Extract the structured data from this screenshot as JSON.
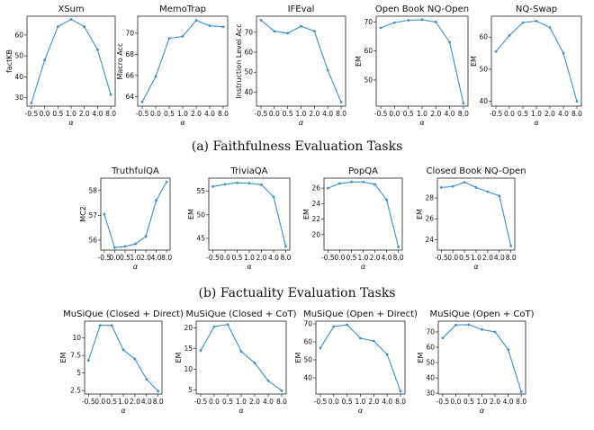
{
  "captions": {
    "faithfulness": "(a) Faithfulness Evaluation Tasks",
    "factuality": "(b) Factuality Evaluation Tasks"
  },
  "colors": {
    "series": "#3a8fd0"
  },
  "chart_data": [
    {
      "type": "line",
      "title": "XSum",
      "xlabel": "α",
      "ylabel": "factKB",
      "categories": [
        "-0.5",
        "0.0",
        "0.5",
        "1.0",
        "2.0",
        "4.0",
        "8.0"
      ],
      "values": [
        27.5,
        48,
        64,
        67.5,
        64,
        53,
        31.5
      ],
      "ylim": [
        26,
        69
      ],
      "yticks": [
        30,
        40,
        50,
        60
      ]
    },
    {
      "type": "line",
      "title": "MemoTrap",
      "xlabel": "α",
      "ylabel": "Macro Acc",
      "categories": [
        "-0.5",
        "0.0",
        "0.5",
        "1.0",
        "2.0",
        "4.0",
        "8.0"
      ],
      "values": [
        63.5,
        65.9,
        69.5,
        69.7,
        71.2,
        70.7,
        70.6
      ],
      "ylim": [
        63.1,
        71.6
      ],
      "yticks": [
        64,
        66,
        68,
        70
      ]
    },
    {
      "type": "line",
      "title": "IFEval",
      "xlabel": "α",
      "ylabel": "Instruction Level Acc",
      "categories": [
        "-0.5",
        "0.0",
        "0.5",
        "1.0",
        "2.0",
        "4.0",
        "8.0"
      ],
      "values": [
        76,
        70.5,
        69.5,
        73,
        70.5,
        51,
        35
      ],
      "ylim": [
        33,
        78
      ],
      "yticks": [
        40,
        50,
        60,
        70
      ]
    },
    {
      "type": "line",
      "title": "Open Book NQ-Open",
      "xlabel": "α",
      "ylabel": "EM",
      "categories": [
        "-0.5",
        "0.0",
        "0.5",
        "1.0",
        "2.0",
        "4.0",
        "8.0"
      ],
      "values": [
        68,
        69.8,
        70.6,
        70.8,
        70,
        63,
        42
      ],
      "ylim": [
        41,
        72
      ],
      "yticks": [
        50,
        60,
        70
      ]
    },
    {
      "type": "line",
      "title": "NQ-Swap",
      "xlabel": "α",
      "ylabel": "EM",
      "categories": [
        "-0.5",
        "0.0",
        "0.5",
        "1.0",
        "2.0",
        "4.0",
        "8.0"
      ],
      "values": [
        55.5,
        60.5,
        64.5,
        65,
        63,
        55,
        40
      ],
      "ylim": [
        38.5,
        66.5
      ],
      "yticks": [
        40,
        50,
        60
      ]
    },
    {
      "type": "line",
      "title": "TruthfulQA",
      "xlabel": "α",
      "ylabel": "MC2",
      "categories": [
        "-0.5",
        "0.0",
        "0.5",
        "1.0",
        "2.0",
        "4.0",
        "8.0"
      ],
      "values": [
        57.05,
        55.7,
        55.75,
        55.85,
        56.15,
        57.6,
        58.35
      ],
      "ylim": [
        55.6,
        58.5
      ],
      "yticks": [
        56,
        57,
        58
      ]
    },
    {
      "type": "line",
      "title": "TriviaQA",
      "xlabel": "α",
      "ylabel": "EM",
      "categories": [
        "-0.5",
        "0.0",
        "0.5",
        "1.0",
        "2.0",
        "4.0",
        "8.0"
      ],
      "values": [
        56,
        56.5,
        56.8,
        56.7,
        56.4,
        53.8,
        43.3
      ],
      "ylim": [
        42.5,
        57.8
      ],
      "yticks": [
        45,
        50,
        55
      ]
    },
    {
      "type": "line",
      "title": "PopQA",
      "xlabel": "α",
      "ylabel": "EM",
      "categories": [
        "-0.5",
        "0.0",
        "0.5",
        "1.0",
        "2.0",
        "4.0",
        "8.0"
      ],
      "values": [
        26,
        26.6,
        26.8,
        26.8,
        26.5,
        24.5,
        18.4
      ],
      "ylim": [
        18,
        27.3
      ],
      "yticks": [
        20,
        22,
        24,
        26
      ]
    },
    {
      "type": "line",
      "title": "Closed Book NQ-Open",
      "xlabel": "α",
      "ylabel": "EM",
      "categories": [
        "-0.5",
        "0.0",
        "0.5",
        "1.0",
        "2.0",
        "4.0",
        "8.0"
      ],
      "values": [
        29,
        29.1,
        29.5,
        29,
        28.6,
        28.2,
        23.4
      ],
      "ylim": [
        23,
        29.9
      ],
      "yticks": [
        24,
        26,
        28
      ]
    },
    {
      "type": "line",
      "title": "MuSiQue (Closed + Direct)",
      "xlabel": "α",
      "ylabel": "EM",
      "categories": [
        "-0.5",
        "0.0",
        "0.5",
        "1.0",
        "2.0",
        "4.0",
        "8.0"
      ],
      "values": [
        6.8,
        11.8,
        11.8,
        8.3,
        7,
        4.1,
        2.4
      ],
      "ylim": [
        2,
        12.4
      ],
      "yticks": [
        2.5,
        5.0,
        7.5,
        10.0
      ]
    },
    {
      "type": "line",
      "title": "MuSiQue (Closed + CoT)",
      "xlabel": "α",
      "ylabel": "EM",
      "categories": [
        "-0.5",
        "0.0",
        "0.5",
        "1.0",
        "2.0",
        "4.0",
        "8.0"
      ],
      "values": [
        14.5,
        20.3,
        20.8,
        14.3,
        11.5,
        7.2,
        4.8
      ],
      "ylim": [
        4,
        21.6
      ],
      "yticks": [
        5,
        10,
        15,
        20
      ]
    },
    {
      "type": "line",
      "title": "MuSiQue (Open + Direct)",
      "xlabel": "α",
      "ylabel": "EM",
      "categories": [
        "-0.5",
        "0.0",
        "0.5",
        "1.0",
        "2.0",
        "4.0",
        "8.0"
      ],
      "values": [
        56.5,
        68.5,
        69.5,
        62,
        60.5,
        53,
        32.5
      ],
      "ylim": [
        31,
        71.5
      ],
      "yticks": [
        40,
        50,
        60,
        70
      ]
    },
    {
      "type": "line",
      "title": "MuSiQue (Open + CoT)",
      "xlabel": "α",
      "ylabel": "EM",
      "categories": [
        "-0.5",
        "0.0",
        "0.5",
        "1.0",
        "2.0",
        "4.0",
        "8.0"
      ],
      "values": [
        66,
        74.5,
        74.7,
        71.5,
        70,
        58.5,
        31
      ],
      "ylim": [
        29.5,
        77
      ],
      "yticks": [
        30,
        40,
        50,
        60,
        70
      ]
    }
  ]
}
